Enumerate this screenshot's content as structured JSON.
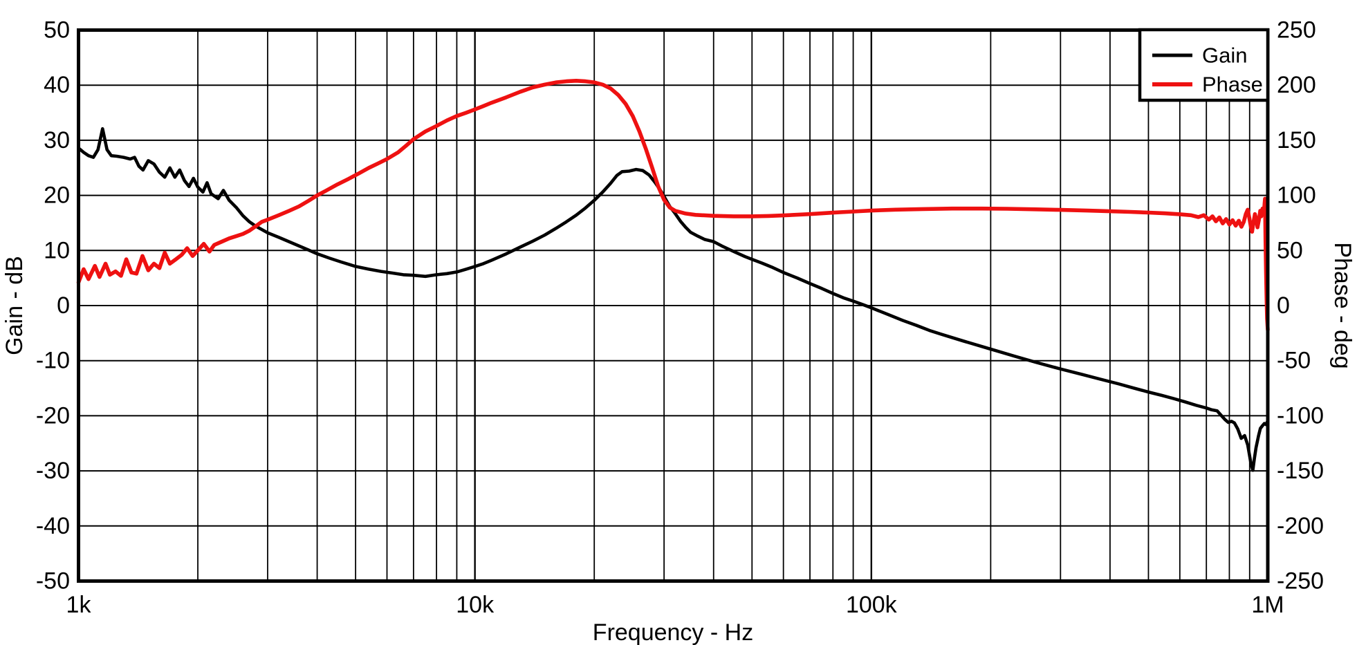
{
  "figure": {
    "background": "#ffffff",
    "x_axis": {
      "title": "Frequency - Hz",
      "scale": "log",
      "min_hz": 1000,
      "max_hz": 1000000,
      "tick_labels": [
        "1k",
        "10k",
        "100k",
        "1M"
      ],
      "tick_values_hz": [
        1000,
        10000,
        100000,
        1000000
      ],
      "minor_gridlines": true
    },
    "y_axis_left": {
      "title": "Gain - dB",
      "min": -50,
      "max": 50,
      "tick_step": 10,
      "tick_labels": [
        "50",
        "40",
        "30",
        "20",
        "10",
        "0",
        "-10",
        "-20",
        "-30",
        "-40",
        "-50"
      ]
    },
    "y_axis_right": {
      "title": "Phase - deg",
      "min": -250,
      "max": 250,
      "tick_step": 50,
      "tick_labels": [
        "250",
        "200",
        "150",
        "100",
        "50",
        "0",
        "-50",
        "-100",
        "-150",
        "-200",
        "-250"
      ]
    },
    "legend": {
      "position": "top-right",
      "items": [
        {
          "label": "Gain",
          "color": "#000000"
        },
        {
          "label": "Phase",
          "color": "#ee1111"
        }
      ]
    },
    "grid_color": "#000000",
    "border_color": "#000000"
  },
  "chart_data": {
    "type": "line",
    "title": "",
    "xlabel": "Frequency - Hz",
    "x_scale": "log",
    "x_range_hz": [
      1000,
      1000000
    ],
    "ylabel_left": "Gain - dB",
    "ylim_left": [
      -50,
      50
    ],
    "ylabel_right": "Phase - deg",
    "ylim_right": [
      -250,
      250
    ],
    "grid": true,
    "legend_position": "top-right",
    "series": [
      {
        "name": "Gain",
        "axis": "left",
        "unit": "dB",
        "color": "#000000",
        "points": [
          [
            1000,
            28.6
          ],
          [
            1030,
            27.8
          ],
          [
            1060,
            27.2
          ],
          [
            1090,
            26.9
          ],
          [
            1120,
            28.3
          ],
          [
            1150,
            32.1
          ],
          [
            1180,
            28.3
          ],
          [
            1210,
            27.2
          ],
          [
            1250,
            27.1
          ],
          [
            1300,
            26.9
          ],
          [
            1350,
            26.6
          ],
          [
            1385,
            26.9
          ],
          [
            1420,
            25.3
          ],
          [
            1455,
            24.6
          ],
          [
            1500,
            26.3
          ],
          [
            1550,
            25.7
          ],
          [
            1600,
            24.2
          ],
          [
            1650,
            23.3
          ],
          [
            1700,
            25.0
          ],
          [
            1750,
            23.3
          ],
          [
            1800,
            24.6
          ],
          [
            1850,
            22.7
          ],
          [
            1900,
            21.6
          ],
          [
            1950,
            23.1
          ],
          [
            2000,
            21.5
          ],
          [
            2060,
            20.6
          ],
          [
            2110,
            22.3
          ],
          [
            2160,
            20.3
          ],
          [
            2250,
            19.4
          ],
          [
            2320,
            20.9
          ],
          [
            2400,
            19.1
          ],
          [
            2500,
            17.8
          ],
          [
            2600,
            16.3
          ],
          [
            2700,
            15.2
          ],
          [
            2800,
            14.4
          ],
          [
            2900,
            13.8
          ],
          [
            3000,
            13.2
          ],
          [
            3200,
            12.4
          ],
          [
            3500,
            11.2
          ],
          [
            3800,
            10.1
          ],
          [
            4000,
            9.4
          ],
          [
            4300,
            8.6
          ],
          [
            4600,
            7.9
          ],
          [
            5000,
            7.1
          ],
          [
            5400,
            6.6
          ],
          [
            5800,
            6.2
          ],
          [
            6200,
            5.9
          ],
          [
            6600,
            5.6
          ],
          [
            7000,
            5.5
          ],
          [
            7500,
            5.3
          ],
          [
            8000,
            5.6
          ],
          [
            8500,
            5.8
          ],
          [
            9000,
            6.1
          ],
          [
            9500,
            6.6
          ],
          [
            10000,
            7.1
          ],
          [
            10500,
            7.6
          ],
          [
            11000,
            8.2
          ],
          [
            12000,
            9.4
          ],
          [
            13000,
            10.6
          ],
          [
            14000,
            11.7
          ],
          [
            15000,
            12.8
          ],
          [
            16000,
            14.0
          ],
          [
            17000,
            15.2
          ],
          [
            18000,
            16.4
          ],
          [
            19000,
            17.7
          ],
          [
            20000,
            19.1
          ],
          [
            21000,
            20.6
          ],
          [
            22000,
            22.2
          ],
          [
            22800,
            23.6
          ],
          [
            23500,
            24.3
          ],
          [
            24500,
            24.4
          ],
          [
            25500,
            24.7
          ],
          [
            26500,
            24.5
          ],
          [
            27500,
            23.7
          ],
          [
            28500,
            22.3
          ],
          [
            29500,
            20.7
          ],
          [
            30000,
            19.8
          ],
          [
            31000,
            18.0
          ],
          [
            32000,
            16.7
          ],
          [
            33000,
            15.3
          ],
          [
            34000,
            14.2
          ],
          [
            35000,
            13.3
          ],
          [
            36500,
            12.6
          ],
          [
            38000,
            12.0
          ],
          [
            40000,
            11.6
          ],
          [
            42000,
            10.8
          ],
          [
            45000,
            9.8
          ],
          [
            48000,
            8.9
          ],
          [
            50000,
            8.4
          ],
          [
            53000,
            7.7
          ],
          [
            56000,
            7.0
          ],
          [
            60000,
            6.0
          ],
          [
            65000,
            5.0
          ],
          [
            70000,
            4.0
          ],
          [
            75000,
            3.1
          ],
          [
            80000,
            2.2
          ],
          [
            85000,
            1.4
          ],
          [
            90000,
            0.8
          ],
          [
            95000,
            0.2
          ],
          [
            100000,
            -0.4
          ],
          [
            110000,
            -1.6
          ],
          [
            120000,
            -2.7
          ],
          [
            130000,
            -3.6
          ],
          [
            140000,
            -4.5
          ],
          [
            150000,
            -5.2
          ],
          [
            170000,
            -6.4
          ],
          [
            200000,
            -7.9
          ],
          [
            230000,
            -9.2
          ],
          [
            260000,
            -10.3
          ],
          [
            300000,
            -11.5
          ],
          [
            340000,
            -12.5
          ],
          [
            380000,
            -13.4
          ],
          [
            420000,
            -14.2
          ],
          [
            460000,
            -15.0
          ],
          [
            500000,
            -15.7
          ],
          [
            540000,
            -16.3
          ],
          [
            580000,
            -16.9
          ],
          [
            620000,
            -17.5
          ],
          [
            660000,
            -18.1
          ],
          [
            700000,
            -18.6
          ],
          [
            720000,
            -18.9
          ],
          [
            745000,
            -19.1
          ],
          [
            760000,
            -19.8
          ],
          [
            780000,
            -20.7
          ],
          [
            795000,
            -21.2
          ],
          [
            810000,
            -21.0
          ],
          [
            824000,
            -21.3
          ],
          [
            840000,
            -22.4
          ],
          [
            857000,
            -24.1
          ],
          [
            874000,
            -23.6
          ],
          [
            890000,
            -25.3
          ],
          [
            907000,
            -28.7
          ],
          [
            917000,
            -29.9
          ],
          [
            925000,
            -27.8
          ],
          [
            934000,
            -25.8
          ],
          [
            948000,
            -23.6
          ],
          [
            958000,
            -22.3
          ],
          [
            970000,
            -21.8
          ],
          [
            980000,
            -21.4
          ],
          [
            990000,
            -21.6
          ],
          [
            1000000,
            -20.9
          ]
        ]
      },
      {
        "name": "Phase",
        "axis": "right",
        "unit": "deg",
        "color": "#ee1111",
        "points": [
          [
            1000,
            21
          ],
          [
            1030,
            33
          ],
          [
            1060,
            24
          ],
          [
            1100,
            36
          ],
          [
            1130,
            26
          ],
          [
            1170,
            38
          ],
          [
            1200,
            28
          ],
          [
            1240,
            31
          ],
          [
            1280,
            27
          ],
          [
            1320,
            42
          ],
          [
            1360,
            30
          ],
          [
            1400,
            29
          ],
          [
            1450,
            45
          ],
          [
            1500,
            32
          ],
          [
            1550,
            38
          ],
          [
            1600,
            34
          ],
          [
            1650,
            48
          ],
          [
            1700,
            38
          ],
          [
            1760,
            42
          ],
          [
            1820,
            46
          ],
          [
            1880,
            52
          ],
          [
            1940,
            45
          ],
          [
            2000,
            50
          ],
          [
            2070,
            56
          ],
          [
            2140,
            49
          ],
          [
            2200,
            55
          ],
          [
            2300,
            58
          ],
          [
            2400,
            61
          ],
          [
            2500,
            63
          ],
          [
            2600,
            65
          ],
          [
            2700,
            68
          ],
          [
            2800,
            72
          ],
          [
            2900,
            76
          ],
          [
            3000,
            78
          ],
          [
            3200,
            82
          ],
          [
            3400,
            86
          ],
          [
            3600,
            90
          ],
          [
            3800,
            95
          ],
          [
            4000,
            100
          ],
          [
            4200,
            104
          ],
          [
            4500,
            110
          ],
          [
            4800,
            115
          ],
          [
            5100,
            120
          ],
          [
            5400,
            125
          ],
          [
            5700,
            129
          ],
          [
            6000,
            133
          ],
          [
            6400,
            139
          ],
          [
            6700,
            145
          ],
          [
            7000,
            151
          ],
          [
            7500,
            158
          ],
          [
            8000,
            163
          ],
          [
            8500,
            168
          ],
          [
            9000,
            172
          ],
          [
            9500,
            175
          ],
          [
            10000,
            178
          ],
          [
            10500,
            181
          ],
          [
            11000,
            184
          ],
          [
            12000,
            189
          ],
          [
            13000,
            194
          ],
          [
            14000,
            198
          ],
          [
            15000,
            200.5
          ],
          [
            16000,
            202.5
          ],
          [
            17000,
            203.5
          ],
          [
            18000,
            204
          ],
          [
            19000,
            203.5
          ],
          [
            20000,
            202.5
          ],
          [
            21000,
            200.5
          ],
          [
            22000,
            197
          ],
          [
            23000,
            191
          ],
          [
            24000,
            183
          ],
          [
            25000,
            172
          ],
          [
            26000,
            158
          ],
          [
            27000,
            142
          ],
          [
            28000,
            125
          ],
          [
            29000,
            108
          ],
          [
            30000,
            96
          ],
          [
            31000,
            89
          ],
          [
            32000,
            86
          ],
          [
            34000,
            83.5
          ],
          [
            36000,
            82.3
          ],
          [
            40000,
            81.4
          ],
          [
            45000,
            81
          ],
          [
            50000,
            81
          ],
          [
            55000,
            81.3
          ],
          [
            60000,
            81.8
          ],
          [
            70000,
            83
          ],
          [
            80000,
            84.3
          ],
          [
            90000,
            85.3
          ],
          [
            100000,
            86.2
          ],
          [
            115000,
            87
          ],
          [
            135000,
            87.6
          ],
          [
            160000,
            88
          ],
          [
            190000,
            88
          ],
          [
            220000,
            87.8
          ],
          [
            260000,
            87.3
          ],
          [
            300000,
            86.8
          ],
          [
            350000,
            86.2
          ],
          [
            400000,
            85.6
          ],
          [
            450000,
            85
          ],
          [
            500000,
            84.4
          ],
          [
            550000,
            83.7
          ],
          [
            600000,
            82.9
          ],
          [
            640000,
            82
          ],
          [
            668000,
            80.3
          ],
          [
            690000,
            82
          ],
          [
            710000,
            78
          ],
          [
            725000,
            81
          ],
          [
            740000,
            76.5
          ],
          [
            755000,
            80
          ],
          [
            770000,
            74.5
          ],
          [
            785000,
            78.5
          ],
          [
            800000,
            73.5
          ],
          [
            815000,
            77.5
          ],
          [
            830000,
            72.5
          ],
          [
            845000,
            77
          ],
          [
            858000,
            71.5
          ],
          [
            870000,
            76
          ],
          [
            880000,
            83
          ],
          [
            890000,
            87
          ],
          [
            898000,
            80
          ],
          [
            906000,
            72
          ],
          [
            913000,
            67
          ],
          [
            920000,
            75
          ],
          [
            928000,
            83
          ],
          [
            935000,
            78
          ],
          [
            942000,
            71
          ],
          [
            950000,
            78
          ],
          [
            957000,
            86
          ],
          [
            963000,
            81
          ],
          [
            970000,
            88
          ],
          [
            976000,
            84
          ],
          [
            981000,
            91
          ],
          [
            984000,
            97
          ],
          [
            987000,
            60
          ],
          [
            990000,
            30
          ],
          [
            993000,
            5
          ],
          [
            996000,
            -12
          ],
          [
            1000000,
            -22
          ]
        ]
      }
    ]
  }
}
